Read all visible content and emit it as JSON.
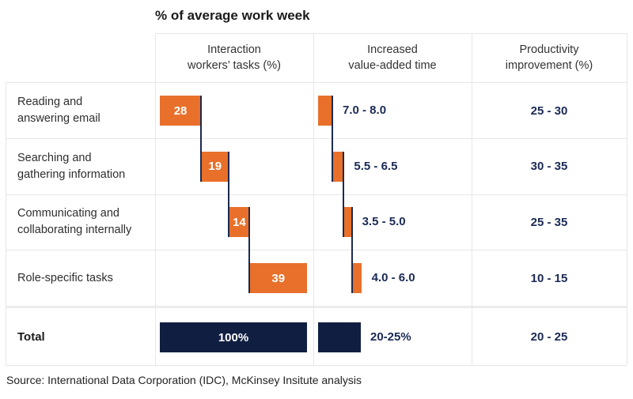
{
  "title": "% of average work week",
  "source": "Source: International Data Corporation (IDC), McKinsey Insitute analysis",
  "columns": [
    {
      "line1": "Interaction",
      "line2": "workers’ tasks (%)"
    },
    {
      "line1": "Increased",
      "line2": "value-added time"
    },
    {
      "line1": "Productivity",
      "line2": "improvement (%)"
    }
  ],
  "rows": [
    {
      "line1": "Reading and",
      "line2": "answering email"
    },
    {
      "line1": "Searching and",
      "line2": "gathering information"
    },
    {
      "line1": "Communicating and",
      "line2": "collaborating internally"
    },
    {
      "line1": "Role-specific tasks",
      "line2": ""
    }
  ],
  "chart_data": {
    "type": "waterfall",
    "title": "% of average work week",
    "categories": [
      "Reading and answering email",
      "Searching and gathering information",
      "Communicating and collaborating internally",
      "Role-specific tasks"
    ],
    "series": [
      {
        "name": "Interaction workers’ tasks (%)",
        "values": [
          28,
          19,
          14,
          39
        ]
      },
      {
        "name": "Increased value-added time",
        "ranges": [
          "7.0 - 8.0",
          "5.5 - 6.5",
          "3.5 - 5.0",
          "4.0 - 6.0"
        ],
        "avg_values": [
          7.5,
          6.0,
          4.25,
          5.0
        ]
      },
      {
        "name": "Productivity improvement (%)",
        "ranges": [
          "25 - 30",
          "30 - 35",
          "25 - 35",
          "10 - 15"
        ]
      }
    ],
    "total": {
      "label": "Total",
      "tasks_label": "100%",
      "tasks_value": 100,
      "value_added_label": "20-25%",
      "value_added_value": 22.5,
      "productivity_range": "20 - 25"
    },
    "colors": {
      "bar_orange": "#e8702b",
      "bar_navy": "#101f41",
      "connector": "#1b2a4e",
      "value_text": "#1b2a55",
      "grid": "#e7e7e7"
    },
    "legend_position": "none",
    "grid": "table-lines"
  }
}
